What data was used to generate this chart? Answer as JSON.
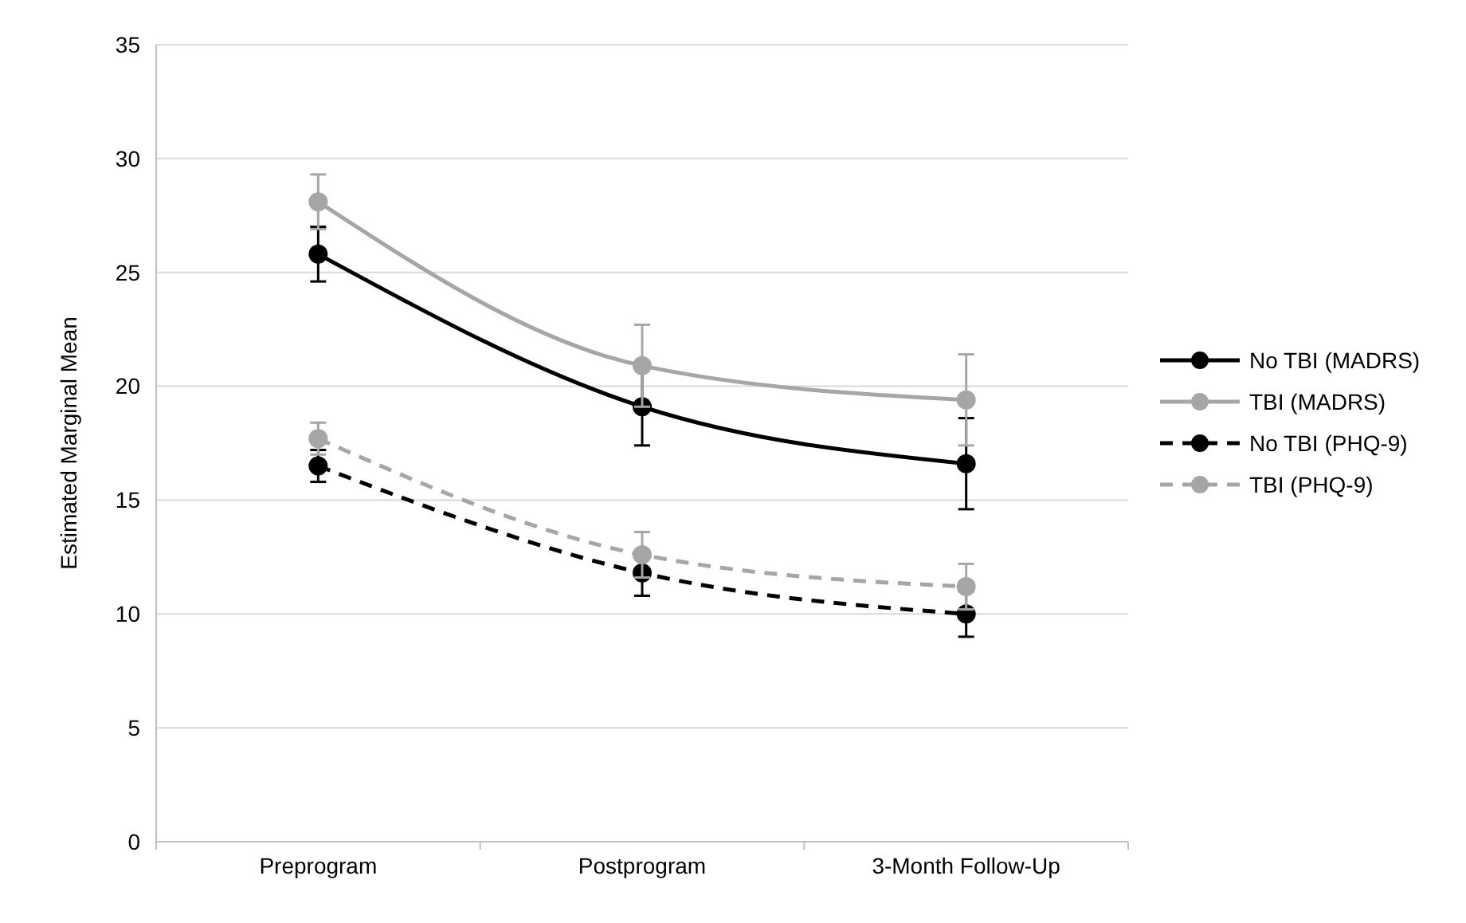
{
  "chart_data": {
    "type": "line",
    "ylabel": "Estimated Marginal Mean",
    "categories": [
      "Preprogram",
      "Postprogram",
      "3-Month Follow-Up"
    ],
    "ylim": [
      0,
      35
    ],
    "yticks": [
      0,
      5,
      10,
      15,
      20,
      25,
      30,
      35
    ],
    "grid": "y",
    "legend": "right",
    "marker": "circle",
    "series": [
      {
        "name": "No TBI (MADRS)",
        "color": "#000000",
        "line_style": "solid",
        "values": [
          25.8,
          19.1,
          16.6
        ],
        "errors": [
          1.2,
          1.7,
          2.0
        ]
      },
      {
        "name": "TBI (MADRS)",
        "color": "#a6a6a6",
        "line_style": "solid",
        "values": [
          28.1,
          20.9,
          19.4
        ],
        "errors": [
          1.2,
          1.8,
          2.0
        ]
      },
      {
        "name": "No TBI (PHQ-9)",
        "color": "#000000",
        "line_style": "dashed",
        "values": [
          16.5,
          11.8,
          10.0
        ],
        "errors": [
          0.7,
          1.0,
          1.0
        ]
      },
      {
        "name": "TBI (PHQ-9)",
        "color": "#a6a6a6",
        "line_style": "dashed",
        "values": [
          17.7,
          12.6,
          11.2
        ],
        "errors": [
          0.7,
          1.0,
          1.0
        ]
      }
    ]
  }
}
